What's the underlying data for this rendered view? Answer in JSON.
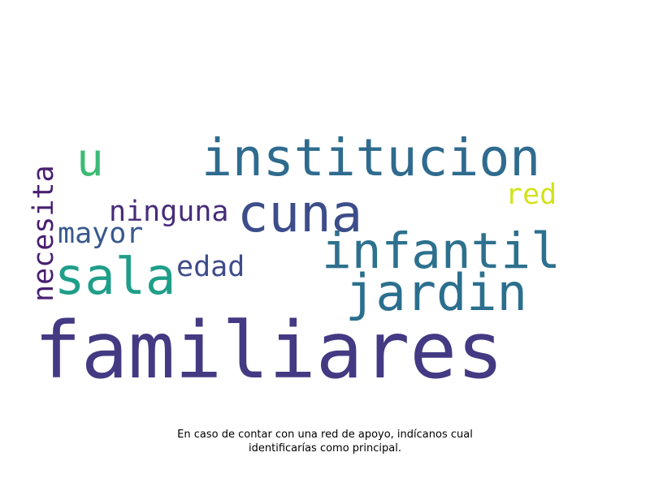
{
  "words": [
    {
      "text": "familiares",
      "color": "#433a83"
    },
    {
      "text": "institucion",
      "color": "#2f6b8e"
    },
    {
      "text": "jardin",
      "color": "#2b6f8e"
    },
    {
      "text": "infantil",
      "color": "#2d718e"
    },
    {
      "text": "cuna",
      "color": "#3d4d8a"
    },
    {
      "text": "sala",
      "color": "#1f9e89"
    },
    {
      "text": "u",
      "color": "#3cbb75"
    },
    {
      "text": "red",
      "color": "#d2e21b"
    },
    {
      "text": "ninguna",
      "color": "#472c7a"
    },
    {
      "text": "mayor",
      "color": "#38598c"
    },
    {
      "text": "edad",
      "color": "#3e4c8a"
    },
    {
      "text": "necesita",
      "color": "#481f70"
    }
  ],
  "caption": {
    "line1": "En caso de contar con una red de apoyo, indícanos cual",
    "line2": "identificarías como principal."
  }
}
